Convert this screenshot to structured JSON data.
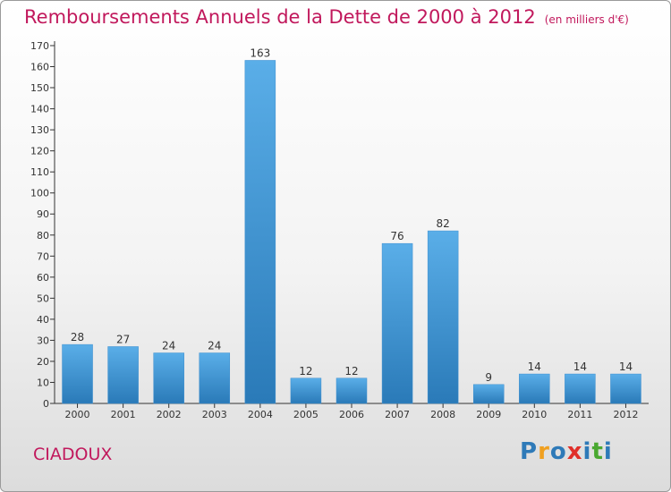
{
  "header": {
    "title": "Remboursements Annuels de la Dette de 2000 à 2012",
    "unit": "(en milliers d'€)"
  },
  "footer": {
    "commune": "CIADOUX",
    "logo_text": "Proxiti"
  },
  "colors": {
    "title": "#c1185c",
    "bar_top": "#5aaee8",
    "bar_bottom": "#2a7ab8",
    "axis": "#333333",
    "grid": "#d0d0d0"
  },
  "chart_data": {
    "type": "bar",
    "title": "Remboursements Annuels de la Dette de 2000 à 2012",
    "subtitle": "(en milliers d'€)",
    "xlabel": "",
    "ylabel": "",
    "categories": [
      "2000",
      "2001",
      "2002",
      "2003",
      "2004",
      "2005",
      "2006",
      "2007",
      "2008",
      "2009",
      "2010",
      "2011",
      "2012"
    ],
    "values": [
      28,
      27,
      24,
      24,
      163,
      12,
      12,
      76,
      82,
      9,
      14,
      14,
      14
    ],
    "ylim": [
      0,
      170
    ],
    "yticks": [
      0,
      10,
      20,
      30,
      40,
      50,
      60,
      70,
      80,
      90,
      100,
      110,
      120,
      130,
      140,
      150,
      160,
      170
    ],
    "grid": false,
    "legend": "none"
  }
}
